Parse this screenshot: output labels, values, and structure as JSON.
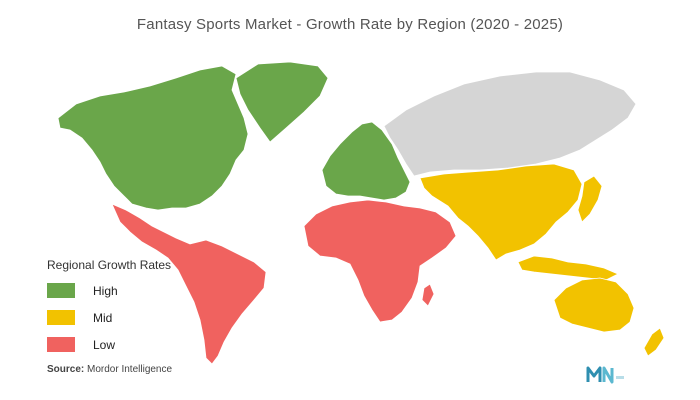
{
  "title": "Fantasy Sports Market - Growth Rate by Region (2020 - 2025)",
  "legend": {
    "title": "Regional Growth Rates",
    "items": [
      {
        "label": "High",
        "color": "#6aa64a"
      },
      {
        "label": "Mid",
        "color": "#f2c200"
      },
      {
        "label": "Low",
        "color": "#f0625f"
      }
    ]
  },
  "no_data_color": "#d5d5d5",
  "source": {
    "prefix": "Source:",
    "text": "Mordor Intelligence"
  },
  "regions": [
    {
      "name": "North America",
      "growth": "High"
    },
    {
      "name": "Greenland",
      "growth": "High"
    },
    {
      "name": "Europe",
      "growth": "High"
    },
    {
      "name": "Latin America",
      "growth": "Low"
    },
    {
      "name": "Middle East and Africa",
      "growth": "Low"
    },
    {
      "name": "Asia-Pacific",
      "growth": "Mid"
    },
    {
      "name": "Russia",
      "growth": "none"
    }
  ]
}
